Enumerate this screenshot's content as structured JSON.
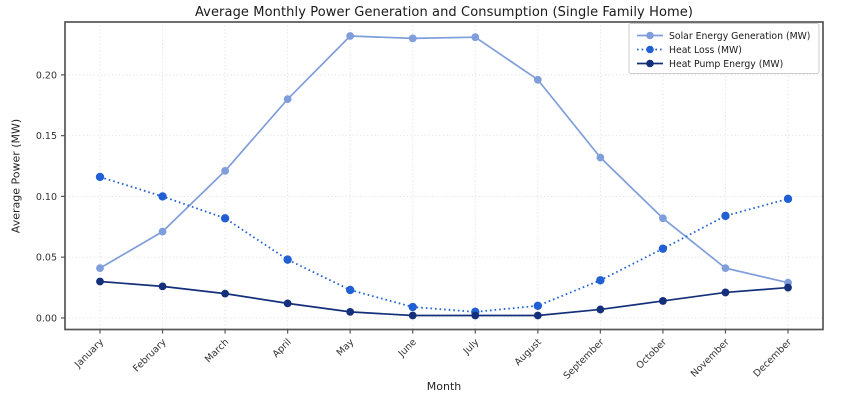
{
  "figure": {
    "background": "#ffffff"
  },
  "chart_data": {
    "type": "line",
    "title": "Average Monthly Power Generation and Consumption (Single Family Home)",
    "xlabel": "Month",
    "ylabel": "Average Power (MW)",
    "categories": [
      "January",
      "February",
      "March",
      "April",
      "May",
      "June",
      "July",
      "August",
      "September",
      "October",
      "November",
      "December"
    ],
    "series": [
      {
        "name": "Solar Energy Generation (MW)",
        "color": "#7f9edb",
        "line_style": "solid",
        "marker": "circle",
        "values": [
          0.041,
          0.071,
          0.121,
          0.18,
          0.232,
          0.23,
          0.231,
          0.196,
          0.132,
          0.082,
          0.041,
          0.029
        ]
      },
      {
        "name": "Heat Loss (MW)",
        "color": "#2160d4",
        "line_style": "dotted",
        "marker": "circle",
        "values": [
          0.116,
          0.1,
          0.082,
          0.048,
          0.023,
          0.009,
          0.005,
          0.01,
          0.031,
          0.057,
          0.084,
          0.098
        ]
      },
      {
        "name": "Heat Pump Energy (MW)",
        "color": "#15307a",
        "line_style": "solid",
        "marker": "circle",
        "values": [
          0.03,
          0.026,
          0.02,
          0.012,
          0.005,
          0.002,
          0.002,
          0.002,
          0.007,
          0.014,
          0.021,
          0.025
        ]
      }
    ],
    "y_ticks": [
      0.0,
      0.05,
      0.1,
      0.15,
      0.2
    ],
    "y_tick_labels": [
      "0.00",
      "0.05",
      "0.10",
      "0.15",
      "0.20"
    ],
    "ylim": [
      -0.0095,
      0.2435
    ],
    "grid": true,
    "x_tick_rotation": 45,
    "legend_position": "upper right"
  },
  "colors": {
    "grid": "#d9d9d9",
    "spine": "#555555",
    "tick_text": "#333333",
    "legend_border": "#cccccc",
    "legend_background": "#ffffff",
    "legend_text": "#1a1a1a"
  }
}
